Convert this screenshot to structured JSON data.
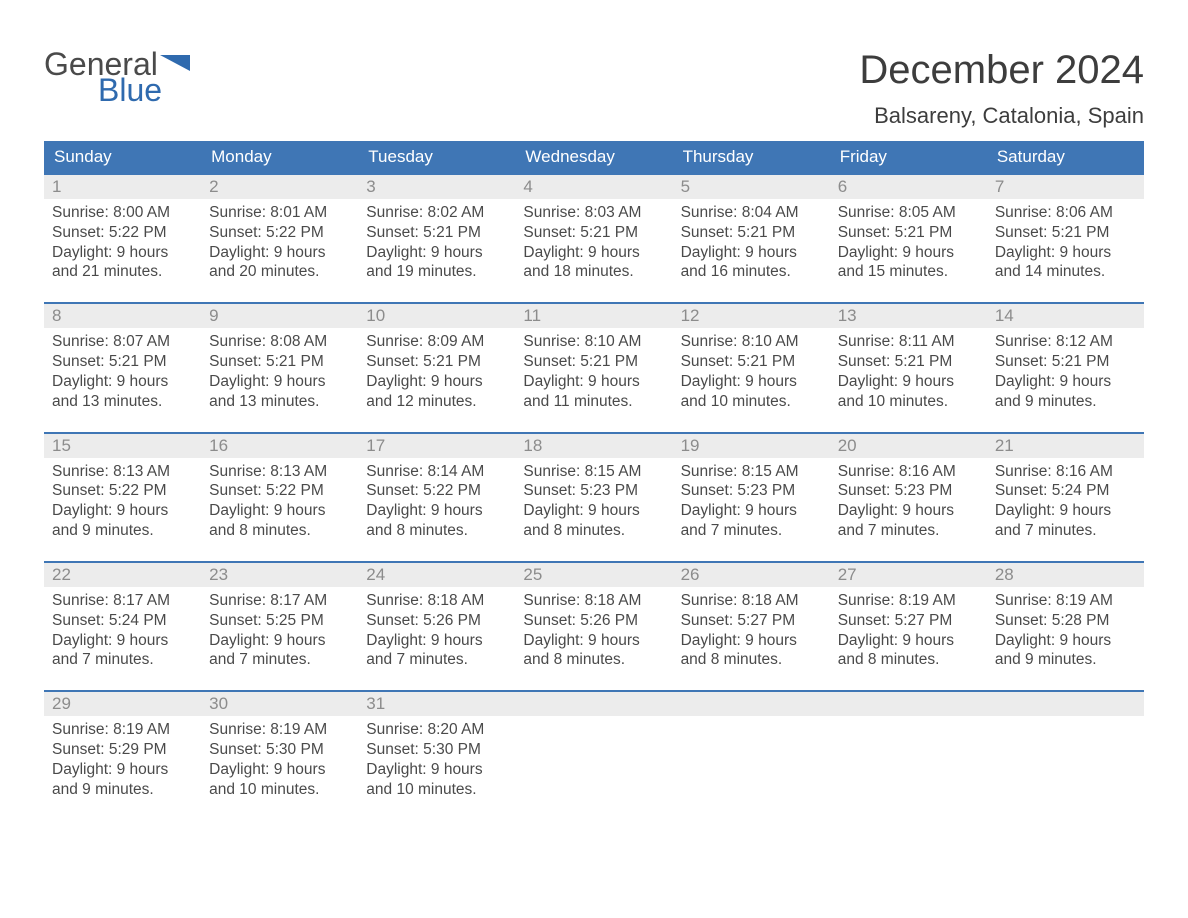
{
  "colors": {
    "header_bg": "#3f76b5",
    "header_text": "#ffffff",
    "daynum_bg": "#ececec",
    "daynum_text": "#8c8c8c",
    "body_text": "#4a4a4a",
    "week_border": "#3f76b5",
    "logo_blue": "#2f6aae",
    "page_bg": "#ffffff"
  },
  "fonts": {
    "family": "Arial, Helvetica, sans-serif",
    "month_title_pt": 40,
    "location_pt": 22,
    "dow_pt": 17,
    "daynum_pt": 17,
    "body_pt": 15.5
  },
  "logo": {
    "general": "General",
    "blue": "Blue"
  },
  "title": "December 2024",
  "location": "Balsareny, Catalonia, Spain",
  "days_of_week": [
    "Sunday",
    "Monday",
    "Tuesday",
    "Wednesday",
    "Thursday",
    "Friday",
    "Saturday"
  ],
  "weeks": [
    [
      {
        "num": "1",
        "sunrise": "8:00 AM",
        "sunset": "5:22 PM",
        "dl1": "Daylight: 9 hours",
        "dl2": "and 21 minutes."
      },
      {
        "num": "2",
        "sunrise": "8:01 AM",
        "sunset": "5:22 PM",
        "dl1": "Daylight: 9 hours",
        "dl2": "and 20 minutes."
      },
      {
        "num": "3",
        "sunrise": "8:02 AM",
        "sunset": "5:21 PM",
        "dl1": "Daylight: 9 hours",
        "dl2": "and 19 minutes."
      },
      {
        "num": "4",
        "sunrise": "8:03 AM",
        "sunset": "5:21 PM",
        "dl1": "Daylight: 9 hours",
        "dl2": "and 18 minutes."
      },
      {
        "num": "5",
        "sunrise": "8:04 AM",
        "sunset": "5:21 PM",
        "dl1": "Daylight: 9 hours",
        "dl2": "and 16 minutes."
      },
      {
        "num": "6",
        "sunrise": "8:05 AM",
        "sunset": "5:21 PM",
        "dl1": "Daylight: 9 hours",
        "dl2": "and 15 minutes."
      },
      {
        "num": "7",
        "sunrise": "8:06 AM",
        "sunset": "5:21 PM",
        "dl1": "Daylight: 9 hours",
        "dl2": "and 14 minutes."
      }
    ],
    [
      {
        "num": "8",
        "sunrise": "8:07 AM",
        "sunset": "5:21 PM",
        "dl1": "Daylight: 9 hours",
        "dl2": "and 13 minutes."
      },
      {
        "num": "9",
        "sunrise": "8:08 AM",
        "sunset": "5:21 PM",
        "dl1": "Daylight: 9 hours",
        "dl2": "and 13 minutes."
      },
      {
        "num": "10",
        "sunrise": "8:09 AM",
        "sunset": "5:21 PM",
        "dl1": "Daylight: 9 hours",
        "dl2": "and 12 minutes."
      },
      {
        "num": "11",
        "sunrise": "8:10 AM",
        "sunset": "5:21 PM",
        "dl1": "Daylight: 9 hours",
        "dl2": "and 11 minutes."
      },
      {
        "num": "12",
        "sunrise": "8:10 AM",
        "sunset": "5:21 PM",
        "dl1": "Daylight: 9 hours",
        "dl2": "and 10 minutes."
      },
      {
        "num": "13",
        "sunrise": "8:11 AM",
        "sunset": "5:21 PM",
        "dl1": "Daylight: 9 hours",
        "dl2": "and 10 minutes."
      },
      {
        "num": "14",
        "sunrise": "8:12 AM",
        "sunset": "5:21 PM",
        "dl1": "Daylight: 9 hours",
        "dl2": "and 9 minutes."
      }
    ],
    [
      {
        "num": "15",
        "sunrise": "8:13 AM",
        "sunset": "5:22 PM",
        "dl1": "Daylight: 9 hours",
        "dl2": "and 9 minutes."
      },
      {
        "num": "16",
        "sunrise": "8:13 AM",
        "sunset": "5:22 PM",
        "dl1": "Daylight: 9 hours",
        "dl2": "and 8 minutes."
      },
      {
        "num": "17",
        "sunrise": "8:14 AM",
        "sunset": "5:22 PM",
        "dl1": "Daylight: 9 hours",
        "dl2": "and 8 minutes."
      },
      {
        "num": "18",
        "sunrise": "8:15 AM",
        "sunset": "5:23 PM",
        "dl1": "Daylight: 9 hours",
        "dl2": "and 8 minutes."
      },
      {
        "num": "19",
        "sunrise": "8:15 AM",
        "sunset": "5:23 PM",
        "dl1": "Daylight: 9 hours",
        "dl2": "and 7 minutes."
      },
      {
        "num": "20",
        "sunrise": "8:16 AM",
        "sunset": "5:23 PM",
        "dl1": "Daylight: 9 hours",
        "dl2": "and 7 minutes."
      },
      {
        "num": "21",
        "sunrise": "8:16 AM",
        "sunset": "5:24 PM",
        "dl1": "Daylight: 9 hours",
        "dl2": "and 7 minutes."
      }
    ],
    [
      {
        "num": "22",
        "sunrise": "8:17 AM",
        "sunset": "5:24 PM",
        "dl1": "Daylight: 9 hours",
        "dl2": "and 7 minutes."
      },
      {
        "num": "23",
        "sunrise": "8:17 AM",
        "sunset": "5:25 PM",
        "dl1": "Daylight: 9 hours",
        "dl2": "and 7 minutes."
      },
      {
        "num": "24",
        "sunrise": "8:18 AM",
        "sunset": "5:26 PM",
        "dl1": "Daylight: 9 hours",
        "dl2": "and 7 minutes."
      },
      {
        "num": "25",
        "sunrise": "8:18 AM",
        "sunset": "5:26 PM",
        "dl1": "Daylight: 9 hours",
        "dl2": "and 8 minutes."
      },
      {
        "num": "26",
        "sunrise": "8:18 AM",
        "sunset": "5:27 PM",
        "dl1": "Daylight: 9 hours",
        "dl2": "and 8 minutes."
      },
      {
        "num": "27",
        "sunrise": "8:19 AM",
        "sunset": "5:27 PM",
        "dl1": "Daylight: 9 hours",
        "dl2": "and 8 minutes."
      },
      {
        "num": "28",
        "sunrise": "8:19 AM",
        "sunset": "5:28 PM",
        "dl1": "Daylight: 9 hours",
        "dl2": "and 9 minutes."
      }
    ],
    [
      {
        "num": "29",
        "sunrise": "8:19 AM",
        "sunset": "5:29 PM",
        "dl1": "Daylight: 9 hours",
        "dl2": "and 9 minutes."
      },
      {
        "num": "30",
        "sunrise": "8:19 AM",
        "sunset": "5:30 PM",
        "dl1": "Daylight: 9 hours",
        "dl2": "and 10 minutes."
      },
      {
        "num": "31",
        "sunrise": "8:20 AM",
        "sunset": "5:30 PM",
        "dl1": "Daylight: 9 hours",
        "dl2": "and 10 minutes."
      },
      null,
      null,
      null,
      null
    ]
  ]
}
